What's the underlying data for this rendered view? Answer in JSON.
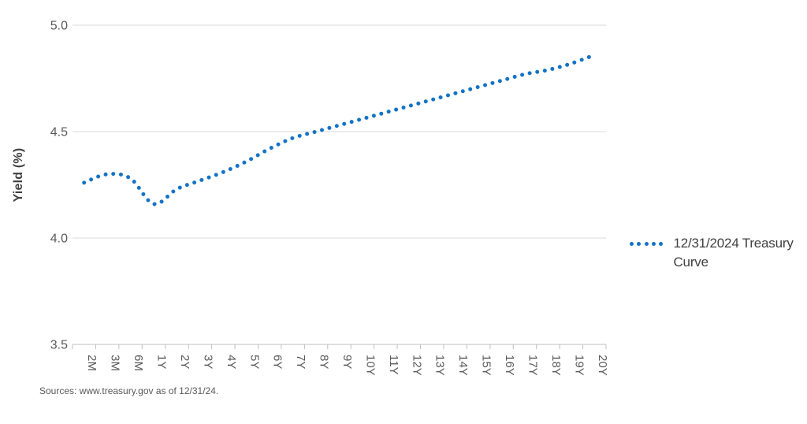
{
  "chart_data": {
    "type": "line",
    "line_style": "dotted",
    "smoothed": true,
    "title": "",
    "xlabel": "",
    "ylabel": "Yield (%)",
    "ylim": [
      3.5,
      5.0
    ],
    "yticks": [
      5.0,
      4.5,
      4.0,
      3.5
    ],
    "ytick_labels": [
      "5.0",
      "4.5",
      "4.0",
      "3.5"
    ],
    "grid": true,
    "legend_position": "right",
    "categories": [
      "2M",
      "3M",
      "6M",
      "1Y",
      "2Y",
      "3Y",
      "4Y",
      "5Y",
      "6Y",
      "7Y",
      "8Y",
      "9Y",
      "10Y",
      "11Y",
      "12Y",
      "13Y",
      "14Y",
      "15Y",
      "16Y",
      "17Y",
      "18Y",
      "19Y",
      "20Y"
    ],
    "series": [
      {
        "name": "12/31/2024 Treasury Curve",
        "values": [
          4.26,
          4.3,
          4.28,
          4.16,
          4.23,
          4.27,
          4.31,
          4.36,
          4.42,
          4.47,
          4.5,
          4.53,
          4.56,
          4.59,
          4.62,
          4.65,
          4.68,
          4.71,
          4.74,
          4.77,
          4.79,
          4.82,
          4.86
        ]
      }
    ]
  },
  "legend": {
    "series_label": "12/31/2024 Treasury Curve"
  },
  "footer": {
    "sources_text": "Sources: www.treasury.gov as of 12/31/24."
  },
  "colors": {
    "curve_blue": "#1473c5",
    "gridline": "#dadada",
    "axis_line": "#bfbfbf",
    "tick_text": "#595959",
    "label_text": "#404040"
  }
}
